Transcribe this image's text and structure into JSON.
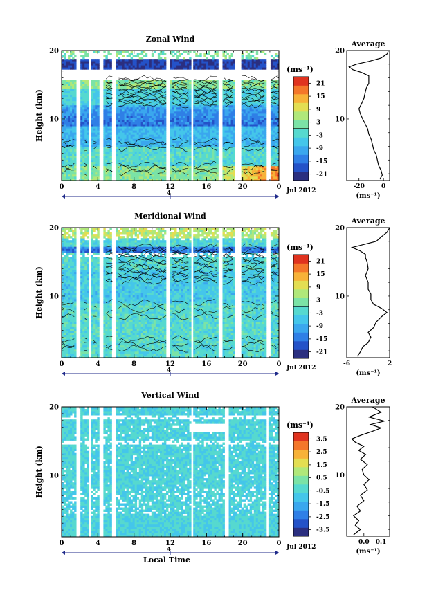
{
  "colors": {
    "scale": [
      "#2b2f80",
      "#2452c8",
      "#2f7fe6",
      "#3aa7ee",
      "#44c6ea",
      "#56d9cf",
      "#7be3a6",
      "#b0e87a",
      "#e3de52",
      "#f7b238",
      "#f4772a",
      "#e0331f"
    ],
    "contour": "#000000",
    "missing": "#ffffff"
  },
  "shared": {
    "x_ticks": [
      "0",
      "4",
      "8",
      "12",
      "16",
      "20",
      "0"
    ],
    "y_ticks": [
      "10",
      "20"
    ],
    "y_label": "Height (km)",
    "day_label": "4",
    "date_label": "Jul 2012",
    "cbar_unit": "(ms⁻¹)",
    "avg_title": "Average",
    "avg_unit": "(ms⁻¹)",
    "x_label": "Local Time"
  },
  "chart_data": [
    {
      "type": "heatmap",
      "title": "Zonal Wind",
      "xlabel": "",
      "ylabel": "Height (km)",
      "x_range_hours": [
        0,
        24
      ],
      "y_range_km": [
        1,
        20
      ],
      "colorbar_ticks": [
        "21",
        "15",
        "9",
        "3",
        "-3",
        "-9",
        "-15",
        "-21"
      ],
      "colorbar_range": [
        -24,
        24
      ],
      "profile": {
        "title": "Average",
        "x_ticks": [
          "-20",
          "0"
        ],
        "x_range": [
          -30,
          5
        ],
        "points": [
          [
            -3,
            1.2
          ],
          [
            -1,
            1.8
          ],
          [
            -2,
            2.5
          ],
          [
            -4,
            3.2
          ],
          [
            -5,
            4
          ],
          [
            -6,
            4.8
          ],
          [
            -8,
            5.5
          ],
          [
            -9,
            6.3
          ],
          [
            -10,
            7
          ],
          [
            -12,
            7.8
          ],
          [
            -13,
            8.6
          ],
          [
            -15,
            9.3
          ],
          [
            -17,
            10
          ],
          [
            -19,
            10.8
          ],
          [
            -20,
            11.5
          ],
          [
            -18,
            12.2
          ],
          [
            -16,
            13
          ],
          [
            -15,
            13.8
          ],
          [
            -14,
            14.5
          ],
          [
            -12,
            15.2
          ],
          [
            -12,
            15.8
          ],
          [
            -12,
            16.3
          ],
          [
            -18,
            16.8
          ],
          [
            -25,
            17.2
          ],
          [
            -28,
            17.6
          ],
          [
            -22,
            18
          ],
          [
            -12,
            18.4
          ],
          [
            -2,
            18.9
          ],
          [
            3,
            19.5
          ],
          [
            4,
            20
          ]
        ]
      }
    },
    {
      "type": "heatmap",
      "title": "Meridional Wind",
      "xlabel": "",
      "ylabel": "Height (km)",
      "x_range_hours": [
        0,
        24
      ],
      "y_range_km": [
        1,
        20
      ],
      "colorbar_ticks": [
        "21",
        "15",
        "9",
        "3",
        "-3",
        "-9",
        "-15",
        "-21"
      ],
      "colorbar_range": [
        -24,
        24
      ],
      "profile": {
        "title": "Average",
        "x_ticks": [
          "-6",
          "2"
        ],
        "x_range": [
          -6,
          2
        ],
        "points": [
          [
            -4,
            1.2
          ],
          [
            -3.5,
            1.8
          ],
          [
            -3,
            2.6
          ],
          [
            -2,
            3.2
          ],
          [
            -1.5,
            4
          ],
          [
            -2,
            4.7
          ],
          [
            -1,
            5.4
          ],
          [
            -0.5,
            6.2
          ],
          [
            0.5,
            7
          ],
          [
            1.5,
            7.6
          ],
          [
            0.5,
            8.2
          ],
          [
            -1,
            8.8
          ],
          [
            -1.5,
            9.5
          ],
          [
            -1.5,
            10.3
          ],
          [
            -2,
            11
          ],
          [
            -2,
            12
          ],
          [
            -2.5,
            13
          ],
          [
            -2,
            14
          ],
          [
            -2.2,
            15
          ],
          [
            -2.5,
            15.6
          ],
          [
            -2.5,
            16.1
          ],
          [
            -3.5,
            16.6
          ],
          [
            -5,
            17.1
          ],
          [
            -3,
            17.5
          ],
          [
            -0.5,
            18
          ],
          [
            0.5,
            18.7
          ],
          [
            1.5,
            19.3
          ],
          [
            2,
            20
          ]
        ]
      }
    },
    {
      "type": "heatmap",
      "title": "Vertical Wind",
      "xlabel": "Local Time",
      "ylabel": "Height (km)",
      "x_range_hours": [
        0,
        24
      ],
      "y_range_km": [
        1,
        20
      ],
      "colorbar_ticks": [
        "3.5",
        "2.5",
        "1.5",
        "0.5",
        "-0.5",
        "-1.5",
        "-2.5",
        "-3.5"
      ],
      "colorbar_range": [
        -4,
        4
      ],
      "profile": {
        "title": "Average",
        "x_ticks": [
          "0.0",
          "0.1"
        ],
        "x_range": [
          -0.1,
          0.15
        ],
        "points": [
          [
            -0.06,
            1.2
          ],
          [
            -0.02,
            2
          ],
          [
            -0.05,
            2.6
          ],
          [
            -0.03,
            3.3
          ],
          [
            -0.06,
            4
          ],
          [
            -0.02,
            4.7
          ],
          [
            -0.04,
            5.4
          ],
          [
            0,
            6.2
          ],
          [
            -0.02,
            7
          ],
          [
            0.02,
            7.8
          ],
          [
            0,
            8.6
          ],
          [
            0.03,
            9.3
          ],
          [
            0,
            10
          ],
          [
            -0.01,
            10.8
          ],
          [
            0.02,
            11.5
          ],
          [
            -0.02,
            12.3
          ],
          [
            0.01,
            13
          ],
          [
            -0.03,
            13.6
          ],
          [
            0,
            14.2
          ],
          [
            -0.05,
            14.8
          ],
          [
            -0.07,
            15.3
          ],
          [
            -0.02,
            15.8
          ],
          [
            0.05,
            16.4
          ],
          [
            0.1,
            16.9
          ],
          [
            0.04,
            17.4
          ],
          [
            0.12,
            17.9
          ],
          [
            0.03,
            18.5
          ],
          [
            0.1,
            19.2
          ],
          [
            0.05,
            20
          ]
        ]
      }
    }
  ]
}
